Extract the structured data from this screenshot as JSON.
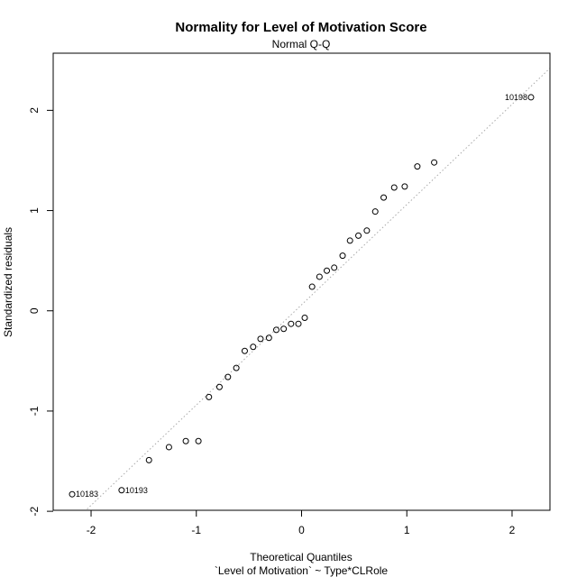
{
  "chart_data": {
    "type": "scatter",
    "title": "Normality for Level of Motivation Score",
    "subtitle": "Normal Q-Q",
    "xlabel": "Theoretical Quantiles",
    "xlabel2": "`Level of Motivation` ~ Type*CLRole",
    "ylabel": "Standardized residuals",
    "xlim": [
      -2.36,
      2.36
    ],
    "ylim": [
      -1.99,
      2.57
    ],
    "xticks": [
      -2,
      -1,
      0,
      1,
      2
    ],
    "xtick_labels": [
      "-2",
      "-1",
      "0",
      "1",
      "2"
    ],
    "yticks": [
      -2,
      -1,
      0,
      1,
      2
    ],
    "ytick_labels": [
      "-2",
      "-1",
      "0",
      "1",
      "2"
    ],
    "grid": false,
    "reference_line": {
      "slope": 1.0,
      "intercept": 0.06,
      "style": "dotted",
      "color": "#aaaaaa"
    },
    "marker": {
      "shape": "open-circle",
      "color": "#000000"
    },
    "points": [
      {
        "x": -2.18,
        "y": -1.83,
        "label": "10183"
      },
      {
        "x": -1.71,
        "y": -1.79,
        "label": "10193"
      },
      {
        "x": -1.45,
        "y": -1.49
      },
      {
        "x": -1.26,
        "y": -1.36
      },
      {
        "x": -1.1,
        "y": -1.3
      },
      {
        "x": -0.98,
        "y": -1.3
      },
      {
        "x": -0.88,
        "y": -0.86
      },
      {
        "x": -0.78,
        "y": -0.76
      },
      {
        "x": -0.7,
        "y": -0.66
      },
      {
        "x": -0.62,
        "y": -0.57
      },
      {
        "x": -0.54,
        "y": -0.4
      },
      {
        "x": -0.46,
        "y": -0.36
      },
      {
        "x": -0.39,
        "y": -0.28
      },
      {
        "x": -0.31,
        "y": -0.27
      },
      {
        "x": -0.24,
        "y": -0.19
      },
      {
        "x": -0.17,
        "y": -0.18
      },
      {
        "x": -0.1,
        "y": -0.13
      },
      {
        "x": -0.03,
        "y": -0.13
      },
      {
        "x": 0.03,
        "y": -0.07
      },
      {
        "x": 0.1,
        "y": 0.24
      },
      {
        "x": 0.17,
        "y": 0.34
      },
      {
        "x": 0.24,
        "y": 0.4
      },
      {
        "x": 0.31,
        "y": 0.43
      },
      {
        "x": 0.39,
        "y": 0.55
      },
      {
        "x": 0.46,
        "y": 0.7
      },
      {
        "x": 0.54,
        "y": 0.75
      },
      {
        "x": 0.62,
        "y": 0.8
      },
      {
        "x": 0.7,
        "y": 0.99
      },
      {
        "x": 0.78,
        "y": 1.13
      },
      {
        "x": 0.88,
        "y": 1.23
      },
      {
        "x": 0.98,
        "y": 1.24
      },
      {
        "x": 1.1,
        "y": 1.44
      },
      {
        "x": 1.26,
        "y": 1.48
      },
      {
        "x": 2.18,
        "y": 2.13,
        "label": "10198"
      }
    ]
  }
}
